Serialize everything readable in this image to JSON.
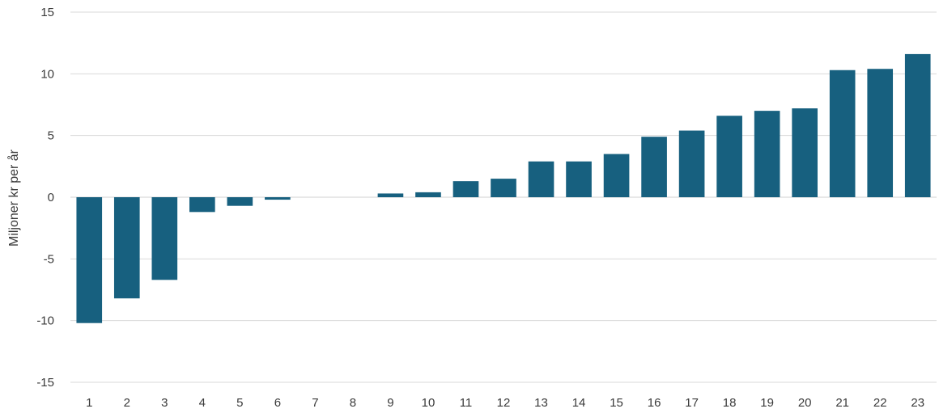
{
  "chart_data": {
    "type": "bar",
    "title": "",
    "xlabel": "",
    "ylabel": "Miljoner kr per år",
    "ylim": [
      -15,
      15
    ],
    "yticks": [
      -15,
      -10,
      -5,
      0,
      5,
      10,
      15
    ],
    "grid": true,
    "legend": "none",
    "bar_color": "#17607F",
    "categories": [
      "1",
      "2",
      "3",
      "4",
      "5",
      "6",
      "7",
      "8",
      "9",
      "10",
      "11",
      "12",
      "13",
      "14",
      "15",
      "16",
      "17",
      "18",
      "19",
      "20",
      "21",
      "22",
      "23"
    ],
    "values": [
      -10.2,
      -8.2,
      -6.7,
      -1.2,
      -0.7,
      -0.2,
      0,
      0,
      0.3,
      0.4,
      1.3,
      1.5,
      2.9,
      2.9,
      3.5,
      4.9,
      5.4,
      6.6,
      7.0,
      7.2,
      10.3,
      10.4,
      11.6
    ]
  }
}
